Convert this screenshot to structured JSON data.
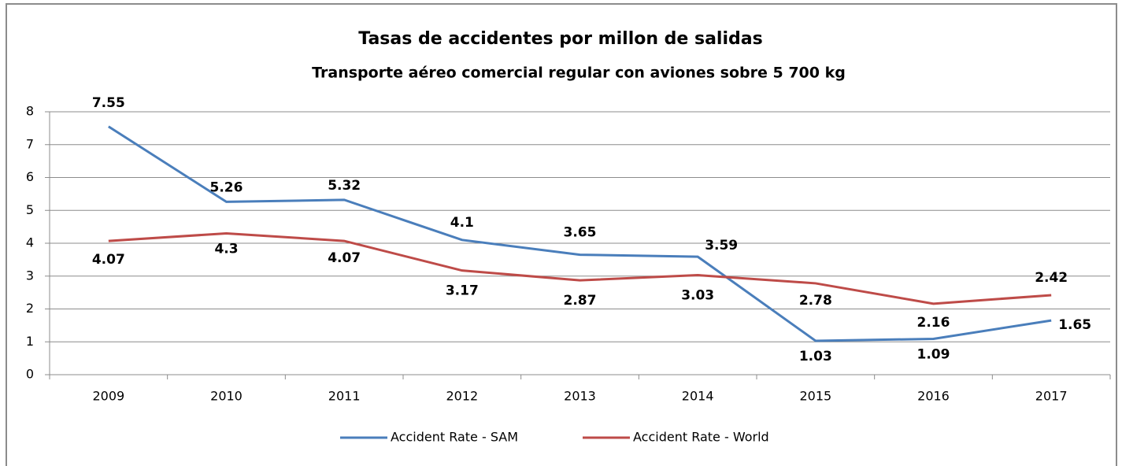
{
  "chart_data": {
    "type": "line",
    "title": "Tasas de accidentes por millon de salidas",
    "subtitle": "Transporte aéreo comercial regular con aviones sobre 5 700 kg",
    "categories": [
      "2009",
      "2010",
      "2011",
      "2012",
      "2013",
      "2014",
      "2015",
      "2016",
      "2017"
    ],
    "series": [
      {
        "name": "Accident Rate - SAM",
        "color": "#4a7ebb",
        "values": [
          7.55,
          5.26,
          5.32,
          4.1,
          3.65,
          3.59,
          1.03,
          1.09,
          1.65
        ]
      },
      {
        "name": "Accident Rate - World",
        "color": "#be4b48",
        "values": [
          4.07,
          4.3,
          4.07,
          3.17,
          2.87,
          3.03,
          2.78,
          2.16,
          2.42
        ]
      }
    ],
    "ylim": [
      0,
      8
    ],
    "yticks": [
      0,
      1,
      2,
      3,
      4,
      5,
      6,
      7,
      8
    ],
    "grid": true,
    "legend": "bottom"
  }
}
